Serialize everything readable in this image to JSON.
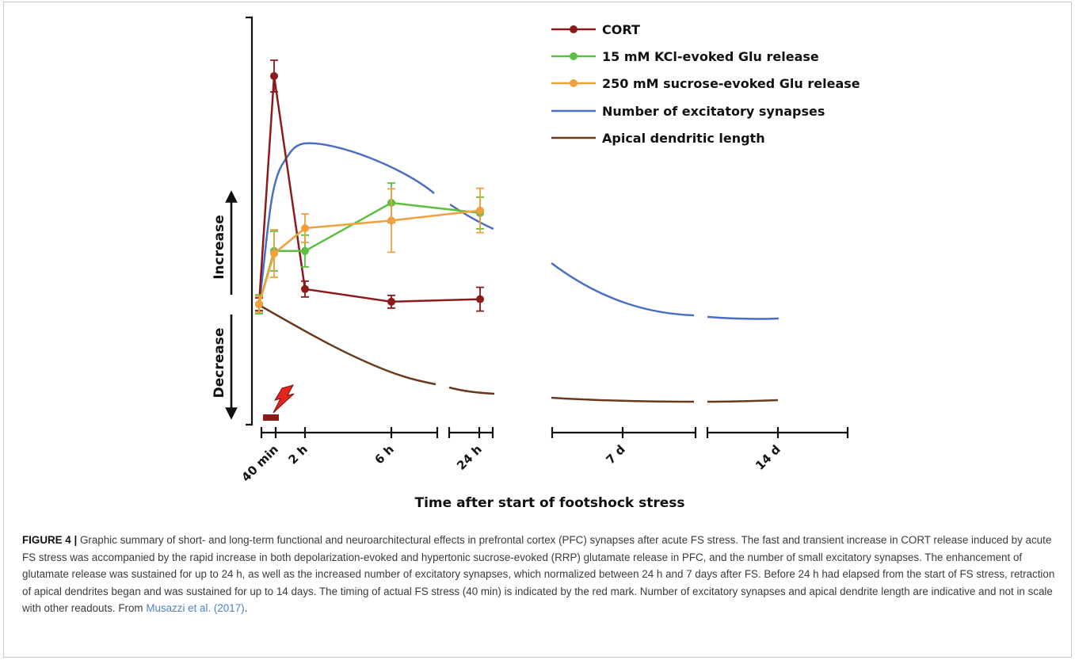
{
  "chart_data": {
    "type": "line",
    "xlabel": "Time after start of footshock stress",
    "ylabel_up": "Increase",
    "ylabel_down": "Decrease",
    "x_ticks": [
      "40 min",
      "2 h",
      "6 h",
      "24 h",
      "7 d",
      "14 d"
    ],
    "y_scale": "qualitative (arbitrary units, baseline = 0)",
    "x_axis": "broken time axis",
    "stress_marker": "red bar with lightning bolt at 0–40 min",
    "legend_position": "top-right",
    "series": [
      {
        "name": "CORT",
        "color": "#8b1a1a",
        "markers": true,
        "error_bars": true,
        "x": [
          "0",
          "40 min",
          "2 h",
          "6 h",
          "24 h"
        ],
        "y": [
          0.0,
          4.5,
          0.3,
          0.05,
          0.1
        ]
      },
      {
        "name": "15 mM KCl-evoked Glu release",
        "color": "#5cbf3f",
        "markers": true,
        "error_bars": true,
        "x": [
          "0",
          "40 min",
          "2 h",
          "6 h",
          "24 h"
        ],
        "y": [
          0.0,
          1.05,
          1.05,
          2.0,
          1.8
        ]
      },
      {
        "name": "250 mM sucrose-evoked Glu release",
        "color": "#eea13c",
        "markers": true,
        "error_bars": true,
        "x": [
          "0",
          "40 min",
          "2 h",
          "6 h",
          "24 h"
        ],
        "y": [
          0.0,
          1.0,
          1.5,
          1.65,
          1.85
        ]
      },
      {
        "name": "Number of excitatory synapses",
        "color": "#4a6fc2",
        "markers": false,
        "error_bars": false,
        "trend": "rapid rise, peak near 2 h, declines through 24 h, normalizes by 7 d"
      },
      {
        "name": "Apical dendritic length",
        "color": "#6b3a1d",
        "markers": false,
        "error_bars": false,
        "trend": "gradual decrease from 0, sustained decrease to 14 d"
      }
    ]
  },
  "legend": {
    "cort": "CORT",
    "kcl": "15 mM KCl-evoked Glu release",
    "sucrose": "250 mM sucrose-evoked Glu release",
    "synapses": "Number of excitatory synapses",
    "dendrite": "Apical dendritic length"
  },
  "caption": {
    "label": "FIGURE 4 |",
    "text": "Graphic summary of short- and long-term functional and neuroarchitectural effects in prefrontal cortex (PFC) synapses after acute FS stress. The fast and transient increase in CORT release induced by acute FS stress was accompanied by the rapid increase in both depolarization-evoked and hypertonic sucrose-evoked (RRP) glutamate release in PFC, and the number of small excitatory synapses. The enhancement of glutamate release was sustained for up to 24 h, as well as the increased number of excitatory synapses, which normalized between 24 h and 7 days after FS. Before 24 h had elapsed from the start of FS stress, retraction of apical dendrites began and was sustained for up to 14 days. The timing of actual FS stress (40 min) is indicated by the red mark. Number of excitatory synapses and apical dendrite length are indicative and not in scale with other readouts. From",
    "link": "Musazzi et al. (2017)",
    "end": "."
  }
}
